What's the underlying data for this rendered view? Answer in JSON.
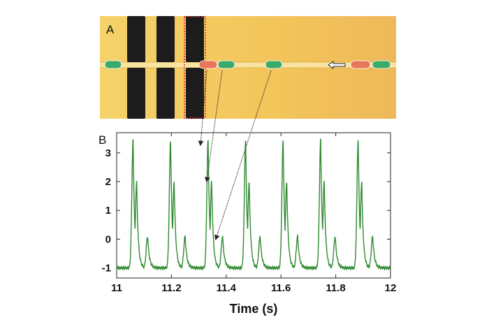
{
  "panel_a": {
    "letter": "A",
    "colors": {
      "background": "#f0c050",
      "electrode": "#1c1c1c",
      "highlight": "#e03030",
      "droplet_red": "#e8765a",
      "droplet_green": "#3cab6a"
    }
  },
  "panel_b": {
    "letter": "B",
    "colors": {
      "trace": "#2f8a2f",
      "frame": "#222222",
      "arrow": "#222222"
    }
  },
  "chart_data": {
    "type": "line",
    "xlabel": "Time (s)",
    "ylabel": "",
    "xlim": [
      11,
      12
    ],
    "ylim": [
      -1.35,
      3.7
    ],
    "xticks": [
      11,
      11.2,
      11.4,
      11.6,
      11.8,
      12
    ],
    "xtick_labels": [
      "11",
      "11.2",
      "11.4",
      "11.6",
      "11.8",
      "12"
    ],
    "yticks": [
      -1,
      0,
      1,
      2,
      3
    ],
    "ytick_labels": [
      "-1",
      "0",
      "1",
      "2",
      "3"
    ],
    "grid": false,
    "baseline": -1,
    "period": 0.137,
    "first_peak": 11.06,
    "peak_pattern": [
      {
        "dt": 0.0,
        "height": 3.45
      },
      {
        "dt": 0.013,
        "height": 2.0
      },
      {
        "dt": 0.053,
        "height": 0.1
      }
    ]
  }
}
